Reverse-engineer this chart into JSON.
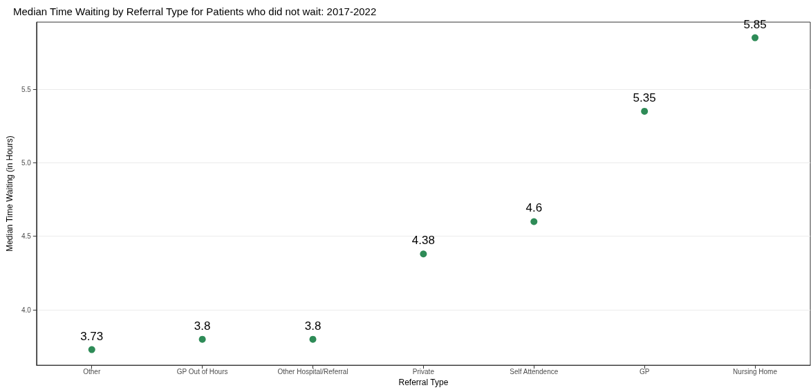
{
  "chart_data": {
    "type": "scatter",
    "title": "Median Time Waiting by Referral Type for Patients who did not wait: 2017-2022",
    "xlabel": "Referral Type",
    "ylabel": "Median Time Waiting (in Hours)",
    "categories": [
      "Other",
      "GP Out of Hours",
      "Other Hospital/Referral",
      "Private",
      "Self Attendence",
      "GP",
      "Nursing Home"
    ],
    "values": [
      3.73,
      3.8,
      3.8,
      4.38,
      4.6,
      5.35,
      5.85
    ],
    "color": "#2e8b57",
    "ylim": [
      3.624,
      5.956
    ],
    "yticks": [
      {
        "value": 4,
        "label": "4.0"
      },
      {
        "value": 4.5,
        "label": "4.5"
      },
      {
        "value": 5,
        "label": "5.0"
      },
      {
        "value": 5.5,
        "label": "5.5"
      }
    ],
    "grid": "y",
    "marker": "circle",
    "data_labels": true
  }
}
